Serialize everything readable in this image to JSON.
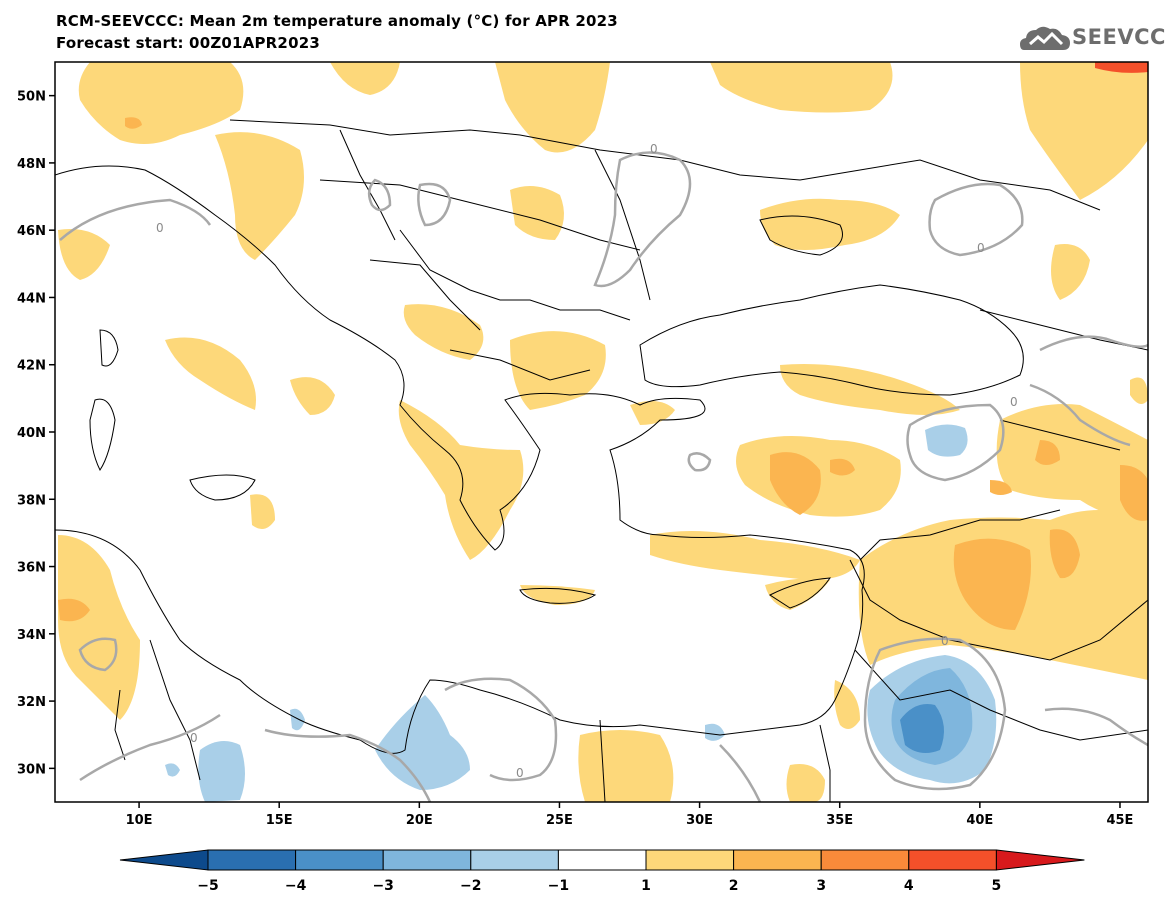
{
  "header": {
    "title_line1": "RCM-SEEVCCC: Mean 2m temperature anomaly (°C) for APR 2023",
    "title_line2": "Forecast start: 00Z01APR2023"
  },
  "logo": {
    "text": "SEEVCCC",
    "icon": "cloud-icon",
    "color": "#6d6d6d"
  },
  "map": {
    "region": "Eastern Mediterranean and Black Sea",
    "lon_range": [
      7,
      46
    ],
    "lat_range": [
      29,
      51
    ],
    "lat_ticks": [
      {
        "value": 50,
        "label": "50N"
      },
      {
        "value": 48,
        "label": "48N"
      },
      {
        "value": 46,
        "label": "46N"
      },
      {
        "value": 44,
        "label": "44N"
      },
      {
        "value": 42,
        "label": "42N"
      },
      {
        "value": 40,
        "label": "40N"
      },
      {
        "value": 38,
        "label": "38N"
      },
      {
        "value": 36,
        "label": "36N"
      },
      {
        "value": 34,
        "label": "34N"
      },
      {
        "value": 32,
        "label": "32N"
      },
      {
        "value": 30,
        "label": "30N"
      }
    ],
    "lon_ticks": [
      {
        "value": 10,
        "label": "10E"
      },
      {
        "value": 15,
        "label": "15E"
      },
      {
        "value": 20,
        "label": "20E"
      },
      {
        "value": 25,
        "label": "25E"
      },
      {
        "value": 30,
        "label": "30E"
      },
      {
        "value": 35,
        "label": "35E"
      },
      {
        "value": 40,
        "label": "40E"
      },
      {
        "value": 45,
        "label": "45E"
      }
    ],
    "contour_label": "0",
    "contour_color": "#a8a8a8",
    "border_color": "#000000"
  },
  "colorbar": {
    "labels": [
      "−5",
      "−4",
      "−3",
      "−2",
      "−1",
      "1",
      "2",
      "3",
      "4",
      "5"
    ],
    "colors": [
      "#0d4a8c",
      "#2a6fb0",
      "#4a90c8",
      "#7fb6dd",
      "#a9cfe8",
      "#ffffff",
      "#fdd87a",
      "#fbb550",
      "#f98a3a",
      "#f4502a",
      "#d7191c"
    ]
  }
}
